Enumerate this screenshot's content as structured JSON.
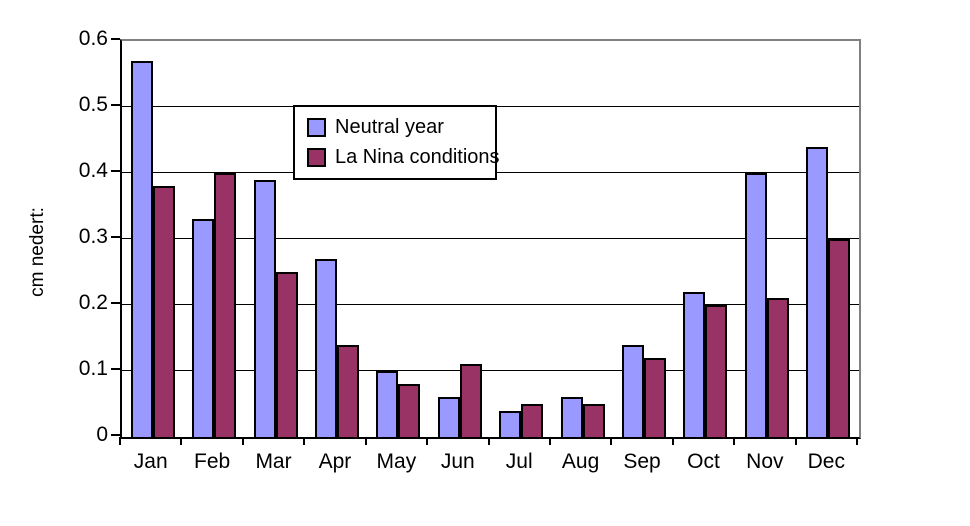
{
  "chart_data": {
    "type": "bar",
    "title": "",
    "xlabel": "",
    "ylabel": "cm nedert:",
    "categories": [
      "Jan",
      "Feb",
      "Mar",
      "Apr",
      "May",
      "Jun",
      "Jul",
      "Aug",
      "Sep",
      "Oct",
      "Nov",
      "Dec"
    ],
    "series": [
      {
        "name": "Neutral year",
        "color": "#9999FF",
        "values": [
          0.57,
          0.33,
          0.39,
          0.27,
          0.1,
          0.06,
          0.04,
          0.06,
          0.14,
          0.22,
          0.4,
          0.44
        ]
      },
      {
        "name": "La Nina conditions",
        "color": "#993366",
        "values": [
          0.38,
          0.4,
          0.25,
          0.14,
          0.08,
          0.11,
          0.05,
          0.05,
          0.12,
          0.2,
          0.21,
          0.3
        ]
      }
    ],
    "ylim": [
      0,
      0.6
    ],
    "ytick_step": 0.1,
    "yticks": [
      "0.6",
      "0.5",
      "0.4",
      "0.3",
      "0.2",
      "0.1",
      "0"
    ],
    "grid": true,
    "legend_position": "inside-upper-left-of-center",
    "colors": {
      "bar_border": "#000000",
      "plot_border_top_right": "#808080",
      "axis": "#000000",
      "background": "#ffffff",
      "text": "#000000"
    }
  }
}
